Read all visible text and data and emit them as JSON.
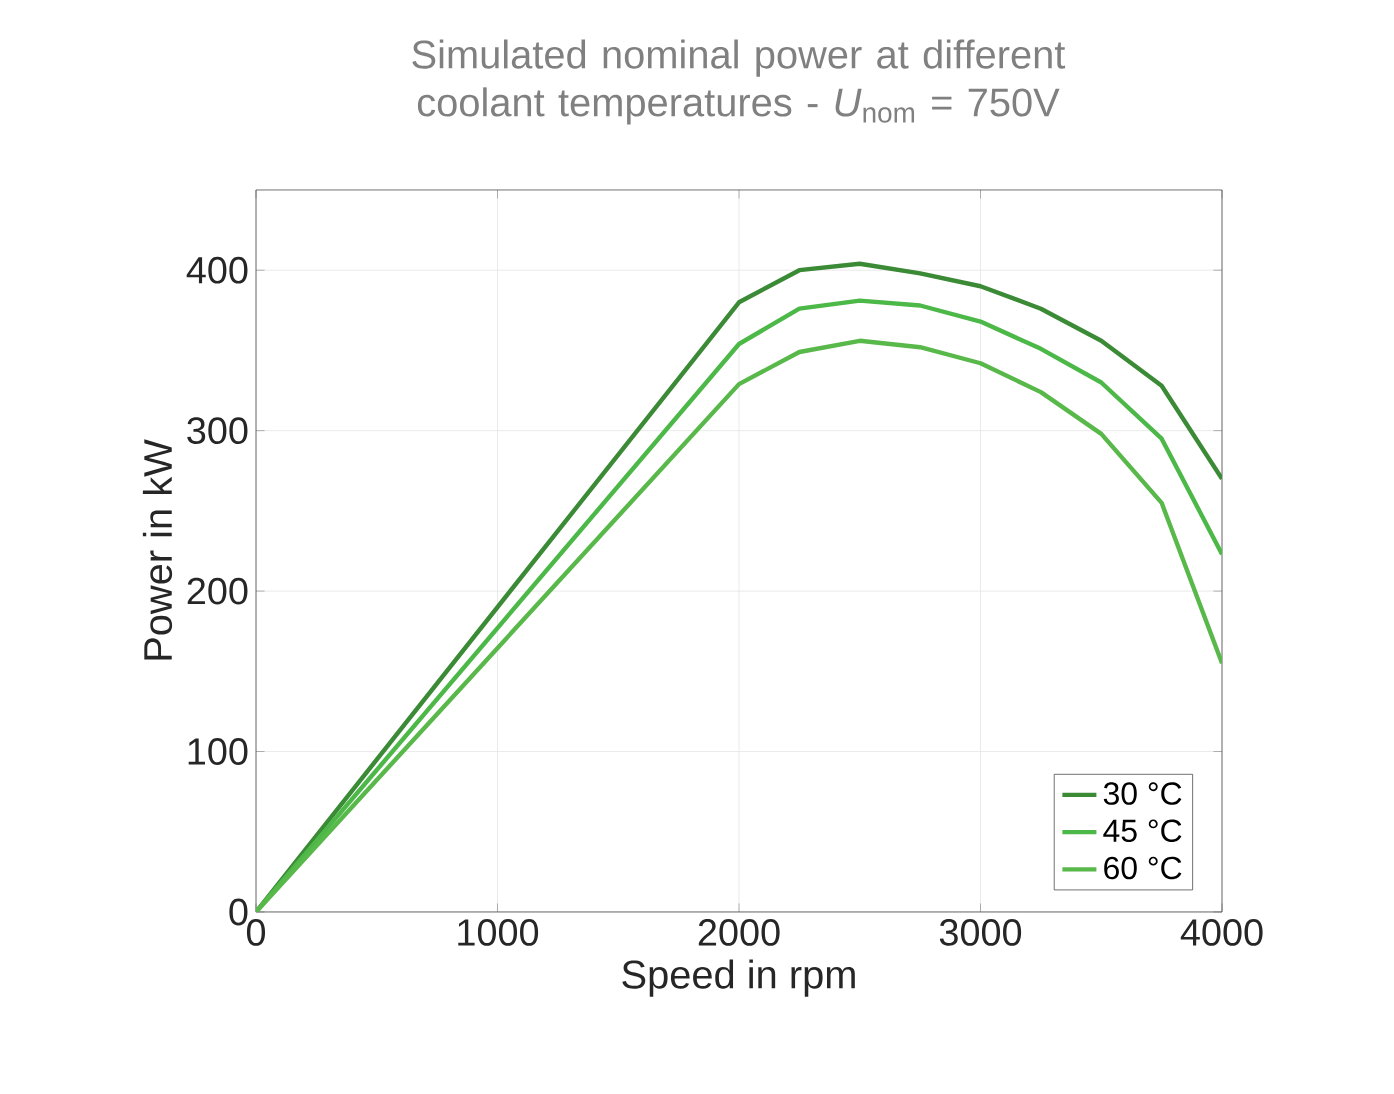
{
  "chart_data": {
    "type": "line",
    "title": "Simulated nominal power at different coolant temperatures - *U*$_{nom}$ = 750V",
    "xlabel": "Speed in rpm",
    "ylabel": "Power in kW",
    "x": [
      0,
      2000,
      2250,
      2500,
      2750,
      3000,
      3250,
      3500,
      3750,
      4000
    ],
    "series": [
      {
        "name": "30 °C",
        "color": "#3b8a35",
        "values": [
          0,
          380,
          400,
          404,
          398,
          390,
          376,
          356,
          328,
          270
        ]
      },
      {
        "name": "45 °C",
        "color": "#4cb848",
        "values": [
          0,
          354,
          376,
          381,
          378,
          368,
          351,
          330,
          295,
          223
        ]
      },
      {
        "name": "60 °C",
        "color": "#58b84a",
        "values": [
          0,
          329,
          349,
          356,
          352,
          342,
          324,
          298,
          255,
          155
        ]
      }
    ],
    "xlim": [
      0,
      4000
    ],
    "ylim": [
      0,
      450
    ],
    "xticks": [
      0,
      1000,
      2000,
      3000,
      4000
    ],
    "yticks": [
      0,
      100,
      200,
      300,
      400
    ],
    "grid": true,
    "legend": "bottom right",
    "marker": "none",
    "line_style": "solid"
  }
}
